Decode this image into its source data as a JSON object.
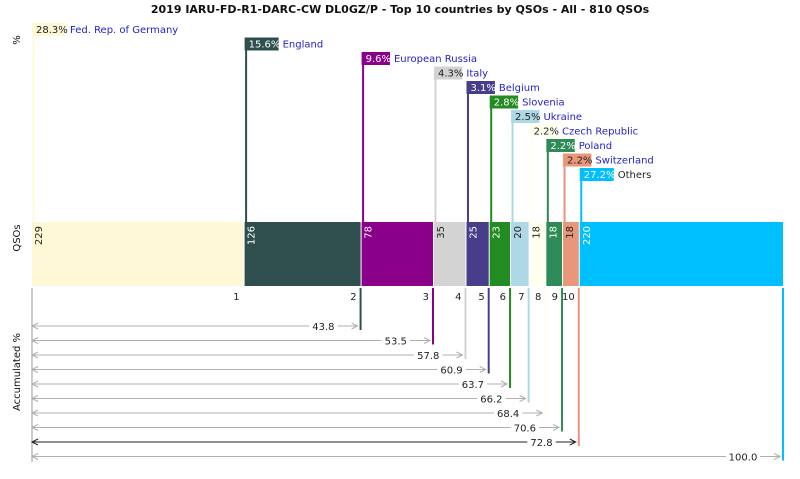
{
  "title": "2019 IARU-FD-R1-DARC-CW DL0GZ/P - Top 10 countries by QSOs - All - 810 QSOs",
  "axis_labels": {
    "percent": "%",
    "qsos": "QSOs",
    "accumulated": "Accumulated %"
  },
  "chart_data": {
    "type": "bar",
    "title": "2019 IARU-FD-R1-DARC-CW DL0GZ/P - Top 10 countries by QSOs - All - 810 QSOs",
    "total_qsos": 810,
    "categories": [
      "Fed. Rep. of Germany",
      "England",
      "European Russia",
      "Italy",
      "Belgium",
      "Slovenia",
      "Ukraine",
      "Czech Republic",
      "Poland",
      "Switzerland",
      "Others"
    ],
    "ranks": [
      "1",
      "2",
      "3",
      "4",
      "5",
      "6",
      "7",
      "8",
      "9",
      "10"
    ],
    "qsos": [
      229,
      126,
      78,
      35,
      25,
      23,
      20,
      18,
      18,
      18,
      220
    ],
    "percent_labels": [
      "28.3%",
      "15.6%",
      "9.6%",
      "4.3%",
      "3.1%",
      "2.8%",
      "2.5%",
      "2.2%",
      "2.2%",
      "2.2%",
      "27.2%"
    ],
    "accumulated": [
      "43.8",
      "53.5",
      "57.8",
      "60.9",
      "63.7",
      "66.2",
      "68.4",
      "70.6",
      "72.8",
      "100.0"
    ],
    "colors": [
      "#fff8d6",
      "#2f4f4f",
      "#8b008b",
      "#d3d3d3",
      "#483d8b",
      "#228b22",
      "#add8e6",
      "#fffff0",
      "#2e8b57",
      "#e9967a",
      "#00bfff"
    ]
  }
}
